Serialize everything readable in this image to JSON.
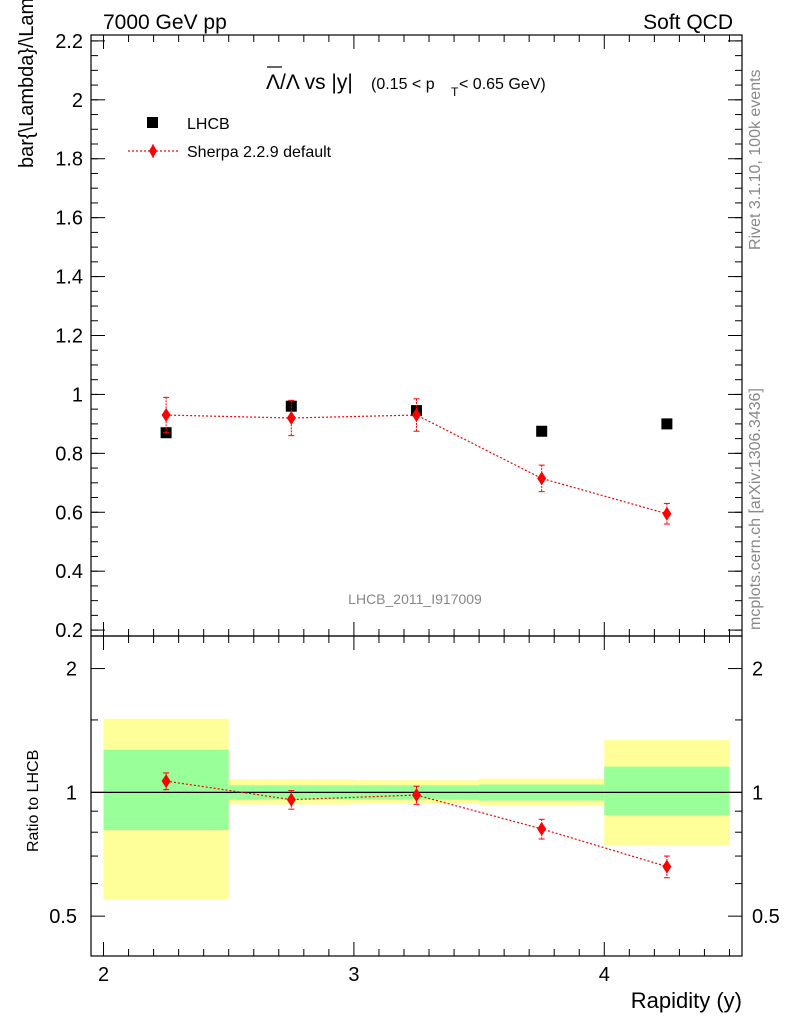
{
  "header": {
    "left": "7000 GeV pp",
    "right": "Soft QCD"
  },
  "side_text": {
    "rivet": "Rivet 3.1.10,  100k events",
    "mcplots": "mcplots.cern.ch [arXiv:1306.3436]"
  },
  "title": {
    "main": "Λ/Λ vs |y|",
    "cut_prefix": "(0.15 < p",
    "cut_sub": "T",
    "cut_suffix": " < 0.65 GeV)"
  },
  "watermark": "LHCB_2011_I917009",
  "chart_data": [
    {
      "type": "scatter",
      "panel": "main",
      "ylabel": "bar{\\Lambda}/\\Lambda",
      "xlim": [
        1.95,
        4.55
      ],
      "ylim": [
        0.18,
        2.22
      ],
      "yticks": [
        0.2,
        0.4,
        0.6,
        0.8,
        1,
        1.2,
        1.4,
        1.6,
        1.8,
        2,
        2.2
      ],
      "ytick_labels": [
        "0.2",
        "0.4",
        "0.6",
        "0.8",
        "1",
        "1.2",
        "1.4",
        "1.6",
        "1.8",
        "2",
        "2.2"
      ],
      "legend_position": "top-left",
      "series": [
        {
          "name": "LHCB",
          "color": "#000000",
          "marker": "square",
          "x": [
            2.25,
            2.75,
            3.25,
            3.75,
            4.25
          ],
          "y": [
            0.87,
            0.96,
            0.945,
            0.875,
            0.9
          ]
        },
        {
          "name": "Sherpa 2.2.9 default",
          "color": "#ff0000",
          "marker": "diamond",
          "line": "dotted",
          "x": [
            2.25,
            2.75,
            3.25,
            3.75,
            4.25
          ],
          "y": [
            0.93,
            0.92,
            0.93,
            0.715,
            0.595
          ],
          "yerr": [
            0.06,
            0.06,
            0.055,
            0.045,
            0.035
          ]
        }
      ]
    },
    {
      "type": "scatter",
      "panel": "ratio",
      "xlabel": "Rapidity (y)",
      "ylabel": "Ratio to LHCB",
      "scale": "log",
      "xlim": [
        1.95,
        4.55
      ],
      "ylim": [
        0.4,
        2.4
      ],
      "xticks": [
        2,
        3,
        4
      ],
      "xtick_labels": [
        "2",
        "3",
        "4"
      ],
      "yticks": [
        0.5,
        1,
        2
      ],
      "ytick_labels": [
        "0.5",
        "1",
        "2"
      ],
      "bands": [
        {
          "x0": 2.0,
          "x1": 2.5,
          "green": [
            0.81,
            1.27
          ],
          "yellow": [
            0.55,
            1.51
          ]
        },
        {
          "x0": 2.5,
          "x1": 3.0,
          "green": [
            0.96,
            1.04
          ],
          "yellow": [
            0.935,
            1.075
          ]
        },
        {
          "x0": 3.0,
          "x1": 3.5,
          "green": [
            0.96,
            1.04
          ],
          "yellow": [
            0.94,
            1.07
          ]
        },
        {
          "x0": 3.5,
          "x1": 4.0,
          "green": [
            0.955,
            1.045
          ],
          "yellow": [
            0.93,
            1.08
          ]
        },
        {
          "x0": 4.0,
          "x1": 4.5,
          "green": [
            0.88,
            1.155
          ],
          "yellow": [
            0.745,
            1.34
          ]
        }
      ],
      "series": [
        {
          "name": "Sherpa 2.2.9 default",
          "color": "#ff0000",
          "marker": "diamond",
          "line": "dotted",
          "x": [
            2.25,
            2.75,
            3.25,
            3.75,
            4.25
          ],
          "y": [
            1.065,
            0.96,
            0.985,
            0.815,
            0.66
          ],
          "yerr": [
            0.05,
            0.05,
            0.05,
            0.045,
            0.04
          ]
        }
      ]
    }
  ]
}
